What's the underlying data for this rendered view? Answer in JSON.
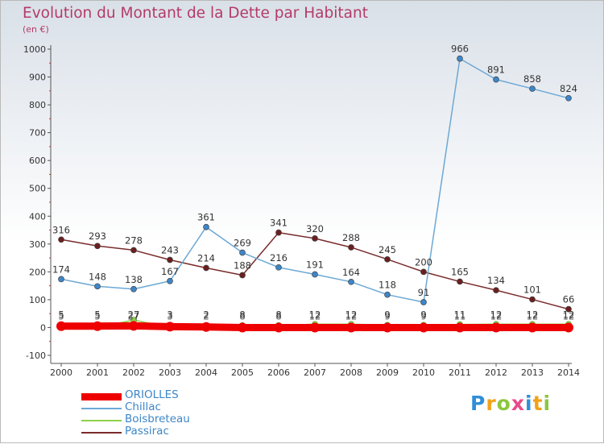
{
  "header": {
    "title": "Evolution du Montant de la Dette par Habitant",
    "subtitle": "(en €)"
  },
  "logo": {
    "text": "Proxiti",
    "letters": [
      "P",
      "r",
      "o",
      "x",
      "i",
      "t",
      "i"
    ]
  },
  "chart_data": {
    "type": "line",
    "x": [
      2000,
      2001,
      2002,
      2003,
      2004,
      2005,
      2006,
      2007,
      2008,
      2009,
      2010,
      2011,
      2012,
      2013,
      2014
    ],
    "ylim": [
      -100,
      1000
    ],
    "yticks": [
      -100,
      0,
      100,
      200,
      300,
      400,
      500,
      600,
      700,
      800,
      900,
      1000
    ],
    "grid": false,
    "legend_position": "bottom-left",
    "series": [
      {
        "name": "ORIOLLES",
        "color": "#ee0000",
        "width": 9,
        "marker": "#ee0000",
        "values": [
          5,
          5,
          6,
          3,
          2,
          0,
          0,
          0,
          0,
          0,
          0,
          0,
          0,
          0,
          0
        ],
        "labels": [
          5,
          5,
          6,
          3,
          2,
          null,
          null,
          null,
          null,
          null,
          null,
          null,
          null,
          null,
          null
        ]
      },
      {
        "name": "Chillac",
        "color": "#6ca8d4",
        "width": 1.5,
        "marker": "#3d86c8",
        "values": [
          174,
          148,
          138,
          167,
          361,
          269,
          216,
          191,
          164,
          118,
          91,
          966,
          891,
          858,
          824
        ]
      },
      {
        "name": "Boisbreteau",
        "color": "#8ed04a",
        "width": 1.5,
        "marker": "#8ed04a",
        "values": [
          0,
          0,
          27,
          0,
          0,
          8,
          8,
          12,
          12,
          9,
          9,
          11,
          12,
          12,
          12
        ]
      },
      {
        "name": "Passirac",
        "color": "#7a2b2b",
        "width": 1.5,
        "marker": "#6b1f1f",
        "values": [
          316,
          293,
          278,
          243,
          214,
          188,
          341,
          320,
          288,
          245,
          200,
          165,
          134,
          101,
          66
        ]
      }
    ],
    "overlap_labels": [
      {
        "year": 2000,
        "text": "5"
      },
      {
        "year": 2001,
        "text": "5"
      },
      {
        "year": 2002,
        "text": "27"
      },
      {
        "year": 2003,
        "text": "3"
      },
      {
        "year": 2004,
        "text": "2"
      },
      {
        "year": 2005,
        "text": "8"
      },
      {
        "year": 2006,
        "text": "8"
      },
      {
        "year": 2007,
        "text": "12"
      },
      {
        "year": 2008,
        "text": "12"
      },
      {
        "year": 2009,
        "text": "9"
      },
      {
        "year": 2010,
        "text": "9"
      },
      {
        "year": 2011,
        "text": "11"
      },
      {
        "year": 2012,
        "text": "12"
      },
      {
        "year": 2013,
        "text": "12"
      },
      {
        "year": 2014,
        "text": "12"
      }
    ]
  }
}
